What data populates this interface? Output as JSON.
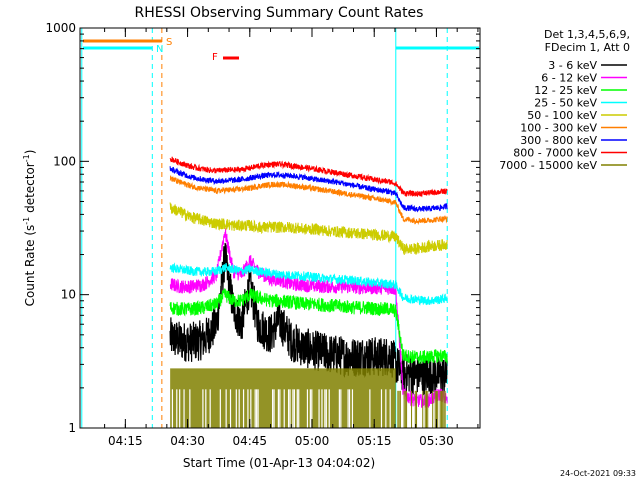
{
  "chart_data": {
    "type": "line",
    "title": "RHESSI Observing Summary Count Rates",
    "xlabel": "Start Time (01-Apr-13 04:04:02)",
    "ylabel_pre": "Count Rate (s",
    "ylabel_sup1": "-1",
    "ylabel_mid": " detector",
    "ylabel_sup2": "-1",
    "ylabel_post": ")",
    "y_scale": "log",
    "ylim": [
      1,
      1000
    ],
    "xlim_minutes": [
      4.067,
      40.067
    ],
    "x_ticks": [
      {
        "t": 15,
        "label": "04:15"
      },
      {
        "t": 30,
        "label": "04:30"
      },
      {
        "t": 45,
        "label": "04:45"
      },
      {
        "t": 60,
        "label": "05:00"
      },
      {
        "t": 75,
        "label": "05:15"
      },
      {
        "t": 90,
        "label": "05:30"
      }
    ],
    "y_ticks": [
      {
        "v": 1,
        "label": "1"
      },
      {
        "v": 10,
        "label": "10"
      },
      {
        "v": 100,
        "label": "100"
      },
      {
        "v": 1000,
        "label": "1000"
      }
    ],
    "legend_header": [
      "Det 1,3,4,5,6,9,",
      "FDecim 1, Att 0"
    ],
    "series": [
      {
        "name": "3 - 6 keV",
        "color": "#000000",
        "x": [
          25.8,
          28,
          31,
          34,
          37,
          39,
          41,
          43,
          45,
          47,
          50,
          52,
          55,
          58,
          61,
          64,
          67,
          70,
          73,
          76,
          79,
          80.2,
          82,
          85,
          88,
          91,
          92.6
        ],
        "values": [
          4.8,
          4.5,
          4.4,
          4.6,
          6,
          19,
          8,
          6,
          12,
          6,
          5,
          6.5,
          4.5,
          4,
          3.8,
          3.6,
          3.5,
          3.4,
          3.5,
          3.4,
          3.5,
          3,
          2.6,
          2.5,
          2.5,
          2.5,
          2.5
        ]
      },
      {
        "name": "6 - 12 keV",
        "color": "#ff00ff",
        "x": [
          25.8,
          28,
          31,
          34,
          37,
          39,
          41,
          43,
          45,
          47,
          50,
          52,
          55,
          58,
          61,
          64,
          67,
          70,
          73,
          76,
          79,
          80.2,
          82,
          85,
          88,
          91,
          92.6
        ],
        "values": [
          12,
          11.5,
          11.5,
          12,
          14,
          30,
          15,
          14,
          18,
          15,
          13,
          13,
          12,
          11.8,
          11.6,
          11.5,
          11.5,
          11.4,
          11.3,
          11.3,
          11.2,
          11,
          1.8,
          1.6,
          1.6,
          1.8,
          1.6
        ]
      },
      {
        "name": "12 - 25 keV",
        "color": "#00ff00",
        "x": [
          25.8,
          28,
          31,
          34,
          37,
          39,
          41,
          43,
          45,
          47,
          50,
          52,
          55,
          58,
          61,
          64,
          67,
          70,
          73,
          76,
          79,
          80.2,
          82,
          85,
          88,
          91,
          92.6
        ],
        "values": [
          8,
          7.8,
          7.8,
          8,
          8.5,
          10,
          9,
          9,
          10,
          9.5,
          9,
          9,
          8.8,
          8.5,
          8.5,
          8.3,
          8.2,
          8,
          8,
          7.8,
          7.8,
          7.5,
          3.5,
          3.4,
          3.4,
          3.5,
          3.4
        ]
      },
      {
        "name": "25 - 50 keV",
        "color": "#00ffff",
        "x": [
          25.8,
          28,
          31,
          34,
          37,
          39,
          41,
          43,
          45,
          47,
          50,
          52,
          55,
          58,
          61,
          64,
          67,
          70,
          73,
          76,
          79,
          80.2,
          82,
          85,
          88,
          91,
          92.6
        ],
        "values": [
          16,
          15.5,
          15,
          14.8,
          15,
          16,
          15.5,
          15,
          15.5,
          15,
          14.5,
          14.2,
          14,
          13.8,
          13.5,
          13.2,
          13,
          12.8,
          12.5,
          12.2,
          12,
          11.8,
          9.5,
          9.2,
          9,
          9.2,
          9.5
        ]
      },
      {
        "name": "50 - 100 keV",
        "color": "#cccc00",
        "x": [
          25.8,
          28,
          31,
          34,
          37,
          39,
          41,
          43,
          45,
          47,
          50,
          52,
          55,
          58,
          61,
          64,
          67,
          70,
          73,
          76,
          79,
          80.2,
          82,
          85,
          88,
          91,
          92.6
        ],
        "values": [
          45,
          42,
          38,
          36,
          34,
          34,
          33,
          33,
          33,
          32,
          32,
          32,
          32,
          31,
          31,
          30,
          29.5,
          29,
          28.5,
          28,
          27.5,
          27,
          22,
          22,
          23,
          23.5,
          24
        ]
      },
      {
        "name": "100 - 300 keV",
        "color": "#ff7f00",
        "x": [
          25.8,
          28,
          31,
          34,
          37,
          39,
          41,
          43,
          45,
          47,
          50,
          52,
          55,
          58,
          61,
          64,
          67,
          70,
          73,
          76,
          79,
          80.2,
          82,
          85,
          88,
          91,
          92.6
        ],
        "values": [
          75,
          70,
          65,
          62,
          60,
          61,
          61,
          62,
          63,
          65,
          67,
          67,
          66,
          64,
          62,
          60,
          58,
          56,
          54,
          52,
          50,
          49,
          37,
          36,
          36,
          37,
          37
        ]
      },
      {
        "name": "300 - 800 keV",
        "color": "#0000ff",
        "x": [
          25.8,
          28,
          31,
          34,
          37,
          39,
          41,
          43,
          45,
          47,
          50,
          52,
          55,
          58,
          61,
          64,
          67,
          70,
          73,
          76,
          79,
          80.2,
          82,
          85,
          88,
          91,
          92.6
        ],
        "values": [
          88,
          82,
          76,
          73,
          71,
          72,
          72,
          73,
          75,
          77,
          79,
          79,
          78,
          76,
          73,
          71,
          69,
          66,
          63,
          61,
          59,
          57,
          45,
          44,
          44,
          45,
          46
        ]
      },
      {
        "name": "800 - 7000 keV",
        "color": "#ff0000",
        "x": [
          25.8,
          28,
          31,
          34,
          37,
          39,
          41,
          43,
          45,
          47,
          50,
          52,
          55,
          58,
          61,
          64,
          67,
          70,
          73,
          76,
          79,
          80.2,
          82,
          85,
          88,
          91,
          92.6
        ],
        "values": [
          105,
          98,
          91,
          87,
          85,
          86,
          86,
          87,
          89,
          92,
          95,
          95,
          93,
          90,
          87,
          84,
          81,
          78,
          75,
          72,
          70,
          68,
          58,
          57,
          58,
          59,
          60
        ]
      },
      {
        "name": "7000 - 15000 keV",
        "color": "#808000",
        "x": [
          25.8,
          92.6
        ],
        "values": [
          1,
          1
        ]
      }
    ],
    "markers": [
      {
        "label": "S",
        "color": "#ff7f00",
        "t": 26.1
      },
      {
        "label": "N",
        "color": "#00ffff",
        "t": 23.2
      },
      {
        "label": "F",
        "color": "#ff0000",
        "t": 37.2
      }
    ],
    "footer_timestamp": "24-Oct-2021 09:33"
  }
}
